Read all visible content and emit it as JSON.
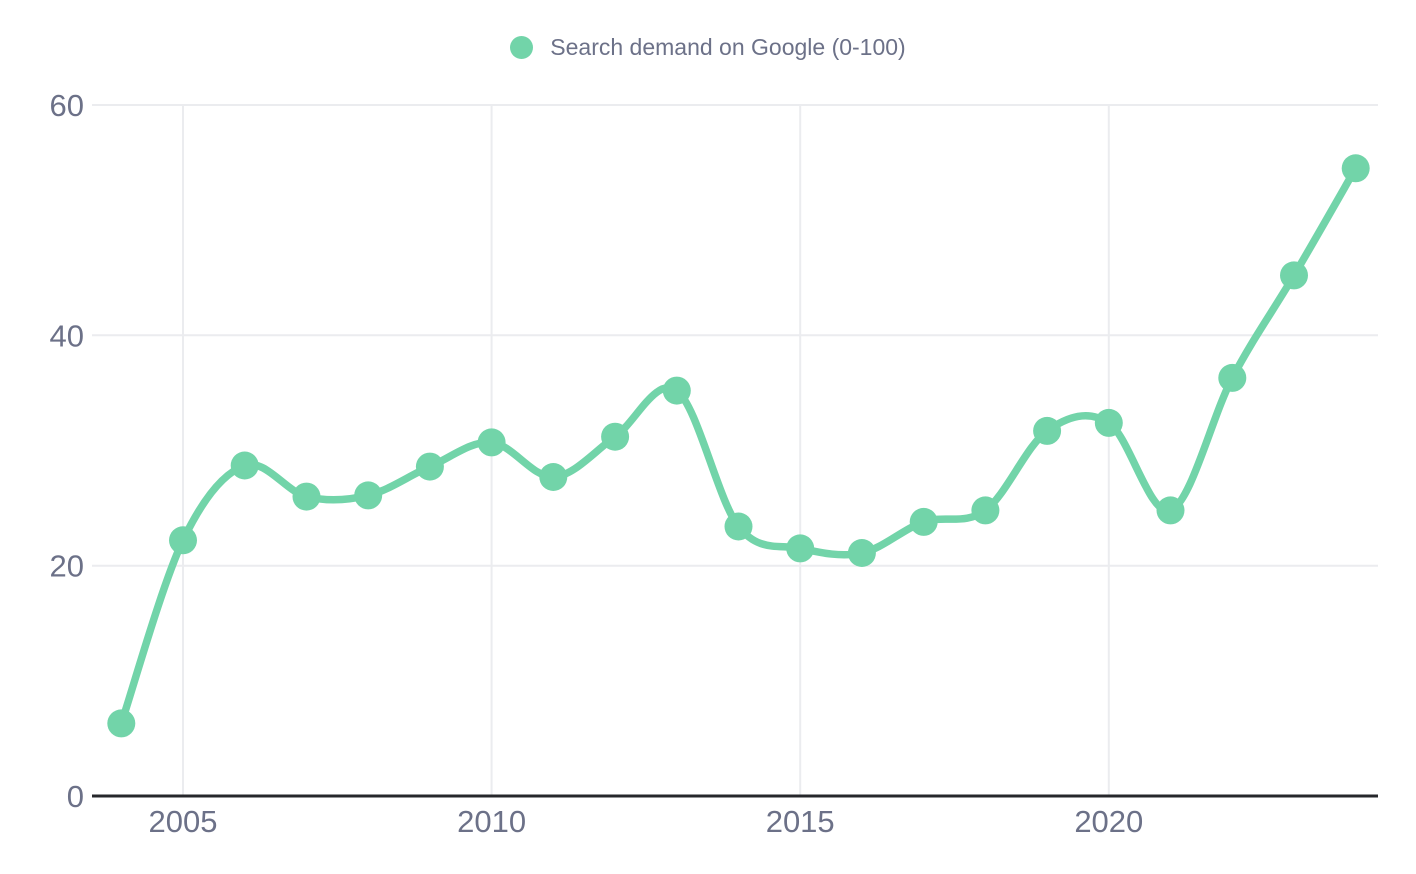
{
  "legend": {
    "label": "Search demand on Google (0-100)"
  },
  "colors": {
    "series": "#72d4a9",
    "grid": "#ebecef",
    "axis": "#26272b",
    "text": "#6c7188",
    "background": "#ffffff"
  },
  "chart_data": {
    "type": "line",
    "title": "Search demand on Google (0-100)",
    "legend_position": "top-center",
    "grid": true,
    "x": [
      2004,
      2005,
      2006,
      2007,
      2008,
      2009,
      2010,
      2011,
      2012,
      2013,
      2014,
      2015,
      2016,
      2017,
      2018,
      2019,
      2020,
      2021,
      2022,
      2023,
      2024
    ],
    "series": [
      {
        "name": "Search demand on Google (0-100)",
        "values": [
          6.3,
          22.2,
          28.7,
          26.0,
          26.1,
          28.6,
          30.7,
          27.7,
          31.2,
          35.2,
          23.4,
          21.5,
          21.1,
          23.8,
          24.8,
          31.7,
          32.4,
          24.8,
          36.3,
          45.2,
          54.5
        ]
      }
    ],
    "xlabel": "",
    "ylabel": "",
    "xticks": [
      2005,
      2010,
      2015,
      2020
    ],
    "yticks": [
      0,
      20,
      40,
      60
    ],
    "ylim": [
      0,
      60
    ],
    "xlim": [
      2004,
      2024
    ]
  }
}
